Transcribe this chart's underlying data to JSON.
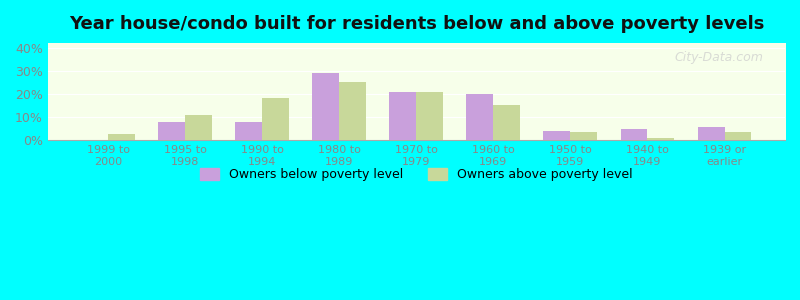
{
  "title": "Year house/condo built for residents below and above poverty levels",
  "categories": [
    "1999 to\n2000",
    "1995 to\n1998",
    "1990 to\n1994",
    "1980 to\n1989",
    "1970 to\n1979",
    "1960 to\n1969",
    "1950 to\n1959",
    "1940 to\n1949",
    "1939 or\nearlier"
  ],
  "below_poverty": [
    0.0,
    8.0,
    8.0,
    29.0,
    21.0,
    20.0,
    4.0,
    5.0,
    5.5
  ],
  "above_poverty": [
    2.5,
    11.0,
    18.0,
    25.0,
    21.0,
    15.0,
    3.5,
    1.0,
    3.5
  ],
  "below_color": "#c9a0dc",
  "above_color": "#c8d89a",
  "ylim": [
    0,
    42
  ],
  "yticks": [
    0,
    10,
    20,
    30,
    40
  ],
  "ytick_labels": [
    "0%",
    "10%",
    "20%",
    "30%",
    "40%"
  ],
  "background_color": "#00ffff",
  "plot_bg_top": "#f0fff0",
  "plot_bg_bottom": "#fffff0",
  "bar_width": 0.35,
  "title_fontsize": 13,
  "legend_labels": [
    "Owners below poverty level",
    "Owners above poverty level"
  ],
  "watermark": "City-Data.com"
}
